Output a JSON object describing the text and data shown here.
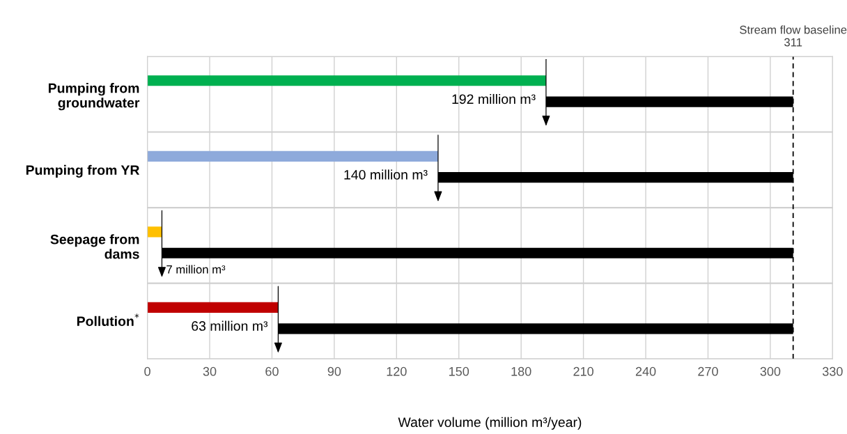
{
  "chart_data": {
    "type": "bar",
    "orientation": "horizontal",
    "categories": [
      "Pumping from\ngroundwater",
      "Pumping from YR",
      "Seepage from\ndams",
      "Pollution$^{*}$"
    ],
    "series": [
      {
        "values": [
          192,
          140,
          7,
          63
        ],
        "colors": [
          "#00b050",
          "#8eaadb",
          "#ffc000",
          "#c00000"
        ]
      },
      {
        "values": [
          119,
          171,
          304,
          248
        ],
        "base": [
          192,
          140,
          7,
          63
        ],
        "color": "#000000"
      }
    ],
    "xlabel": "Water volume (million m³/year)",
    "xlim": [
      0,
      330
    ],
    "xticks": [
      0,
      30,
      60,
      90,
      120,
      150,
      180,
      210,
      240,
      270,
      300,
      330
    ],
    "grid": true,
    "ref_lines": [
      {
        "axis": "x",
        "value": 311,
        "label": "Stream flow baseline\n311",
        "color": "#000000",
        "line_style": "dashed"
      }
    ],
    "annotations": [
      {
        "text": "192 million m³",
        "x": 192,
        "y": "Pumping from\ngroundwater"
      },
      {
        "text": "140 million m³",
        "x": 140,
        "y": "Pumping from YR"
      },
      {
        "text": "7 million m³",
        "x": 7,
        "y": "Seepage from\ndams"
      },
      {
        "text": "63 million m³",
        "x": 63,
        "y": "Pollution$^{*}$"
      }
    ]
  }
}
